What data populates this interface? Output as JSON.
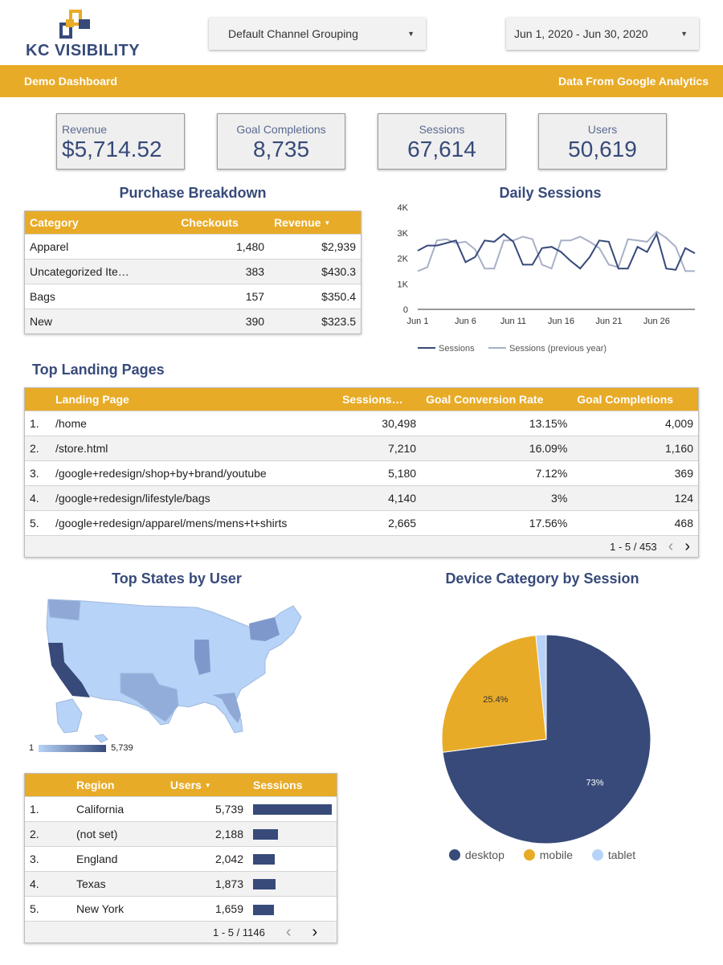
{
  "header": {
    "logo_text": "KC VISIBILITY",
    "channel_dropdown": "Default Channel Grouping",
    "date_dropdown": "Jun 1, 2020 - Jun 30, 2020",
    "banner_left": "Demo Dashboard",
    "banner_right": "Data From Google Analytics"
  },
  "colors": {
    "navy": "#374a7a",
    "gold": "#e8ab27",
    "light_blue": "#b7d3f7",
    "gray_line": "#a7b0c6"
  },
  "scorecards": [
    {
      "label": "Revenue",
      "value": "$5,714.52"
    },
    {
      "label": "Goal Completions",
      "value": "8,735"
    },
    {
      "label": "Sessions",
      "value": "67,614"
    },
    {
      "label": "Users",
      "value": "50,619"
    }
  ],
  "purchase": {
    "title": "Purchase Breakdown",
    "headers": [
      "Category",
      "Checkouts",
      "Revenue"
    ],
    "sort_icon": "sort-desc-icon",
    "rows": [
      [
        "Apparel",
        "1,480",
        "$2,939"
      ],
      [
        "Uncategorized Ite…",
        "383",
        "$430.3"
      ],
      [
        "Bags",
        "157",
        "$350.4"
      ],
      [
        "New",
        "390",
        "$323.5"
      ]
    ]
  },
  "landing": {
    "title": "Top Landing Pages",
    "headers": [
      "Landing Page",
      "Sessions…",
      "Goal Conversion Rate",
      "Goal Completions"
    ],
    "rows": [
      [
        "1.",
        "/home",
        "30,498",
        "13.15%",
        "4,009"
      ],
      [
        "2.",
        "/store.html",
        "7,210",
        "16.09%",
        "1,160"
      ],
      [
        "3.",
        "/google+redesign/shop+by+brand/youtube",
        "5,180",
        "7.12%",
        "369"
      ],
      [
        "4.",
        "/google+redesign/lifestyle/bags",
        "4,140",
        "3%",
        "124"
      ],
      [
        "5.",
        "/google+redesign/apparel/mens/mens+t+shirts",
        "2,665",
        "17.56%",
        "468"
      ]
    ],
    "pager": "1 - 5 / 453"
  },
  "states": {
    "title": "Top States by User",
    "scale_min": "1",
    "scale_max": "5,739",
    "headers": [
      "Region",
      "Users",
      "Sessions"
    ],
    "rows": [
      [
        "1.",
        "California",
        "5,739"
      ],
      [
        "2.",
        "(not set)",
        "2,188"
      ],
      [
        "3.",
        "England",
        "2,042"
      ],
      [
        "4.",
        "Texas",
        "1,873"
      ],
      [
        "5.",
        "New York",
        "1,659"
      ]
    ],
    "sessions_fraction": [
      1.0,
      0.32,
      0.28,
      0.29,
      0.27
    ],
    "pager": "1 - 5 / 1146"
  },
  "device": {
    "title": "Device Category by Session",
    "labels": {
      "desktop": "73%",
      "mobile": "25.4%"
    },
    "legend": [
      "desktop",
      "mobile",
      "tablet"
    ]
  },
  "chart_data": [
    {
      "type": "line",
      "title": "Daily Sessions",
      "x": [
        "Jun 1",
        "Jun 2",
        "Jun 3",
        "Jun 4",
        "Jun 5",
        "Jun 6",
        "Jun 7",
        "Jun 8",
        "Jun 9",
        "Jun 10",
        "Jun 11",
        "Jun 12",
        "Jun 13",
        "Jun 14",
        "Jun 15",
        "Jun 16",
        "Jun 17",
        "Jun 18",
        "Jun 19",
        "Jun 20",
        "Jun 21",
        "Jun 22",
        "Jun 23",
        "Jun 24",
        "Jun 25",
        "Jun 26",
        "Jun 27",
        "Jun 28",
        "Jun 29",
        "Jun 30"
      ],
      "x_tick_labels": [
        "Jun 1",
        "Jun 6",
        "Jun 11",
        "Jun 16",
        "Jun 21",
        "Jun 26"
      ],
      "y_tick_labels": [
        "0",
        "1K",
        "2K",
        "3K",
        "4K"
      ],
      "ylim": [
        0,
        4000
      ],
      "series": [
        {
          "name": "Sessions",
          "color": "#374a7a",
          "values": [
            2300,
            2500,
            2500,
            2600,
            2700,
            1850,
            2050,
            2700,
            2650,
            2950,
            2650,
            1750,
            1750,
            2400,
            2450,
            2250,
            1900,
            1600,
            2050,
            2700,
            2650,
            1600,
            1600,
            2450,
            2250,
            2950,
            1600,
            1550,
            2400,
            2200
          ]
        },
        {
          "name": "Sessions (previous year)",
          "color": "#a7b0c6",
          "values": [
            1500,
            1650,
            2700,
            2750,
            2600,
            2650,
            2350,
            1600,
            1600,
            2700,
            2700,
            2850,
            2750,
            1750,
            1600,
            2700,
            2700,
            2850,
            2650,
            2400,
            1750,
            1650,
            2750,
            2700,
            2650,
            3050,
            2800,
            2450,
            1500,
            1500
          ]
        }
      ]
    },
    {
      "type": "pie",
      "title": "Device Category by Session",
      "categories": [
        "desktop",
        "mobile",
        "tablet"
      ],
      "values": [
        73,
        25.4,
        1.6
      ],
      "colors": [
        "#374a7a",
        "#e8ab27",
        "#b7d3f7"
      ]
    }
  ]
}
